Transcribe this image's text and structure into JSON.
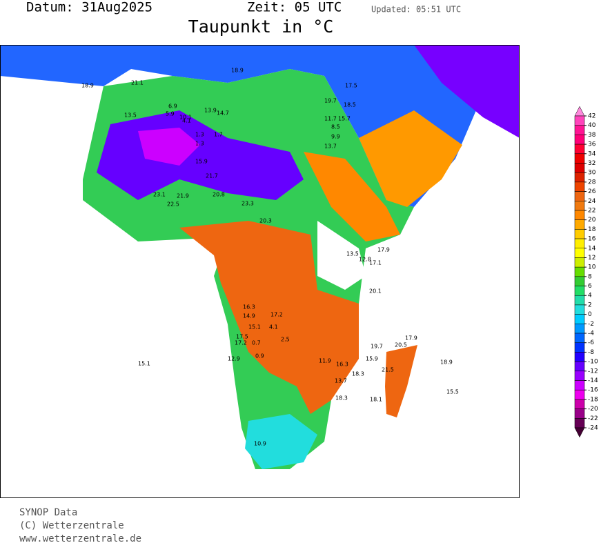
{
  "header": {
    "date": "Datum: 31Aug2025",
    "time": "Zeit: 05 UTC",
    "updated": "Updated: 05:51 UTC",
    "title": "Taupunkt in °C"
  },
  "colorbar": {
    "ticks": [
      42,
      40,
      38,
      36,
      34,
      32,
      30,
      28,
      26,
      24,
      22,
      20,
      18,
      16,
      14,
      12,
      10,
      8,
      6,
      4,
      2,
      0,
      -2,
      -4,
      -6,
      -8,
      -10,
      -12,
      -14,
      -16,
      -18,
      -20,
      -22,
      -24
    ],
    "colors": [
      "#ff88dd",
      "#ff44bb",
      "#ff1493",
      "#ff0077",
      "#ff0033",
      "#ee0000",
      "#dd0000",
      "#dd2200",
      "#ee4400",
      "#ee6611",
      "#f07a10",
      "#ff8800",
      "#ffaa00",
      "#ffcc00",
      "#ffee00",
      "#ffff00",
      "#ccee00",
      "#66dd00",
      "#33cc33",
      "#22dd66",
      "#22ddaa",
      "#22dddd",
      "#00ccff",
      "#0099ff",
      "#0066ff",
      "#0033ff",
      "#2200ff",
      "#6600ff",
      "#9900ff",
      "#cc00ff",
      "#ee00ee",
      "#cc00aa",
      "#990088",
      "#660055",
      "#440033"
    ]
  },
  "stations": [
    "13.5",
    "10.1",
    "1.3",
    "1.3",
    "1.7",
    "15.9",
    "21.7",
    "20.8",
    "23.3",
    "20.3",
    "23.1",
    "21.9",
    "22.5",
    "13.7",
    "11.7",
    "15.7",
    "8.5",
    "9.9",
    "17.9",
    "13.5",
    "12.8",
    "17.1",
    "20.1",
    "16.3",
    "14.9",
    "17.2",
    "4.1",
    "15.1",
    "17.5",
    "17.2",
    "0.7",
    "2.5",
    "12.9",
    "0.9",
    "15.1",
    "11.9",
    "16.3",
    "19.7",
    "20.5",
    "17.9",
    "15.9",
    "21.5",
    "18.9",
    "18.3",
    "13.7",
    "18.3",
    "18.1",
    "15.5",
    "10.9",
    "18.9",
    "21.1",
    "5.9",
    "6.9",
    "4.1",
    "13.9",
    "14.7",
    "18.9",
    "19.7",
    "18.5",
    "17.5"
  ],
  "footer": {
    "line1": "SYNOP Data",
    "line2": "(C) Wetterzentrale",
    "line3": "www.wetterzentrale.de"
  }
}
